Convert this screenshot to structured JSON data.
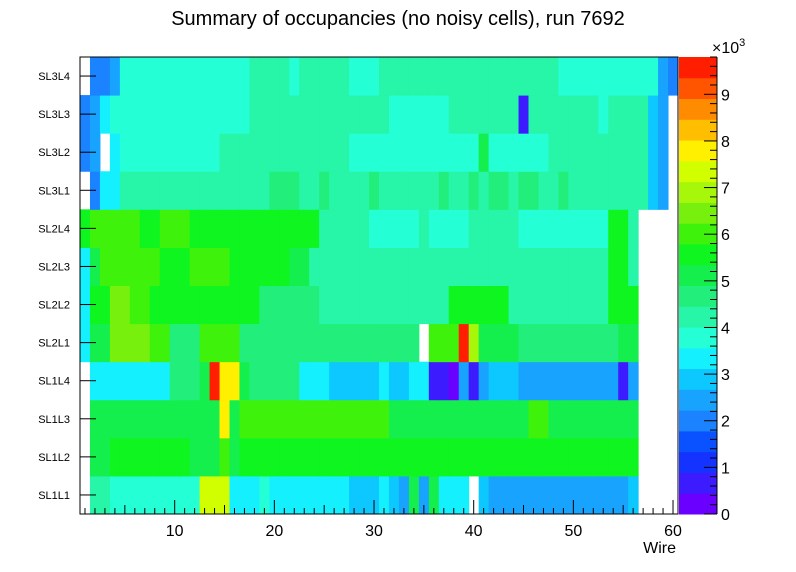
{
  "chart_data": {
    "type": "heatmap",
    "title": "Summary of occupancies (no noisy cells), run 7692",
    "xlabel": "Wire",
    "ylabel": "",
    "xlim": [
      0.5,
      60.5
    ],
    "x_ticks": [
      "10",
      "20",
      "30",
      "40",
      "50",
      "60"
    ],
    "y_categories": [
      "SL1L1",
      "SL1L2",
      "SL1L3",
      "SL1L4",
      "SL2L1",
      "SL2L2",
      "SL2L3",
      "SL2L4",
      "SL3L1",
      "SL3L2",
      "SL3L3",
      "SL3L4"
    ],
    "z_multiplier_label": "×10",
    "z_multiplier_exp": "3",
    "z_ticks": [
      "0",
      "1",
      "2",
      "3",
      "4",
      "5",
      "6",
      "7",
      "8",
      "9"
    ],
    "zlim": [
      0,
      9.8
    ],
    "z_units": "thousands",
    "values": [
      [
        0,
        4.3,
        4.3,
        3.8,
        3.8,
        3.8,
        3.8,
        3.8,
        3.8,
        3.8,
        3.8,
        3.8,
        7.2,
        7.2,
        7.2,
        3.5,
        3.5,
        3.5,
        3.8,
        3.5,
        3.5,
        3.5,
        3.5,
        3.5,
        3.5,
        3.5,
        3.5,
        3.1,
        3.1,
        3.1,
        3.5,
        3.1,
        2.5,
        5.0,
        2.6,
        5.0,
        3.5,
        3.5,
        3.5,
        0,
        3.1,
        2.6,
        2.6,
        2.6,
        2.6,
        2.6,
        2.6,
        2.6,
        2.6,
        2.6,
        2.6,
        2.6,
        2.6,
        2.6,
        2.6,
        3.0,
        0,
        0,
        0,
        0
      ],
      [
        0,
        5.0,
        5.0,
        5.4,
        5.4,
        5.4,
        5.4,
        5.4,
        5.4,
        5.4,
        5.4,
        5.0,
        5.0,
        5.0,
        6.2,
        5.0,
        5.4,
        5.4,
        5.4,
        5.4,
        5.4,
        5.4,
        5.4,
        5.4,
        5.4,
        5.4,
        5.4,
        5.4,
        5.4,
        5.4,
        5.4,
        5.4,
        5.4,
        5.4,
        5.4,
        5.4,
        5.4,
        5.4,
        5.4,
        5.4,
        5.4,
        5.4,
        5.4,
        5.4,
        5.4,
        5.4,
        5.4,
        5.4,
        5.4,
        5.4,
        5.4,
        5.4,
        5.4,
        5.4,
        5.4,
        5.4,
        0,
        0,
        0,
        0
      ],
      [
        0,
        4.9,
        4.9,
        4.9,
        4.9,
        4.9,
        5.3,
        4.9,
        5.3,
        5.3,
        5.3,
        5.3,
        5.3,
        5.3,
        7.8,
        5.3,
        5.9,
        5.9,
        5.9,
        5.9,
        5.9,
        5.9,
        5.9,
        5.9,
        5.9,
        5.9,
        5.9,
        5.9,
        5.9,
        5.9,
        5.9,
        5.3,
        5.3,
        5.3,
        5.3,
        5.3,
        5.3,
        5.3,
        5.3,
        5.3,
        5.3,
        5.3,
        5.3,
        5.3,
        5.3,
        5.9,
        5.9,
        5.3,
        5.3,
        5.3,
        5.3,
        5.3,
        5.3,
        5.3,
        5.3,
        5.3,
        0,
        0,
        0,
        0
      ],
      [
        0,
        3.5,
        3.5,
        3.5,
        3.5,
        3.5,
        3.5,
        3.5,
        3.5,
        4.5,
        4.5,
        4.5,
        4.9,
        9.4,
        7.8,
        7.8,
        4.9,
        4.5,
        4.5,
        4.5,
        4.5,
        4.5,
        3.5,
        3.5,
        3.5,
        3.1,
        3.1,
        3.1,
        3.1,
        3.1,
        3.5,
        3.1,
        3.1,
        3.5,
        3.5,
        0.8,
        0.8,
        0.3,
        2.6,
        0.8,
        2.6,
        3.1,
        3.1,
        3.1,
        2.6,
        2.6,
        2.6,
        2.6,
        2.6,
        2.6,
        2.6,
        2.6,
        2.6,
        2.6,
        0.5,
        2.6,
        0,
        0,
        0,
        0
      ],
      [
        3.5,
        5.0,
        5.0,
        6.4,
        6.4,
        6.4,
        6.4,
        5.8,
        5.8,
        4.8,
        4.8,
        4.8,
        5.8,
        5.8,
        5.8,
        5.8,
        4.8,
        4.8,
        4.8,
        4.8,
        4.8,
        4.8,
        4.8,
        4.8,
        4.8,
        4.8,
        4.8,
        4.8,
        4.8,
        4.8,
        4.8,
        4.8,
        4.8,
        4.8,
        0,
        5.8,
        5.8,
        5.8,
        9.6,
        7.0,
        5.2,
        5.2,
        5.2,
        5.2,
        4.8,
        4.8,
        4.8,
        4.8,
        4.8,
        4.8,
        4.8,
        4.8,
        4.8,
        4.8,
        5.2,
        5.2,
        0,
        0,
        0,
        0
      ],
      [
        3.5,
        5.4,
        5.4,
        6.4,
        6.4,
        5.9,
        5.9,
        5.4,
        5.4,
        5.4,
        5.4,
        5.4,
        5.4,
        5.4,
        5.4,
        5.4,
        5.4,
        5.4,
        4.8,
        4.8,
        4.8,
        4.8,
        4.8,
        4.8,
        4.4,
        4.4,
        4.4,
        4.4,
        4.4,
        4.4,
        4.4,
        4.4,
        4.4,
        4.4,
        4.4,
        4.4,
        4.4,
        5.4,
        5.4,
        5.4,
        5.4,
        5.4,
        5.4,
        4.4,
        4.4,
        4.4,
        4.4,
        4.4,
        4.4,
        4.4,
        4.4,
        4.4,
        4.4,
        5.4,
        5.4,
        5.4,
        0,
        0,
        0,
        0
      ],
      [
        3.5,
        5.0,
        5.8,
        5.8,
        5.8,
        5.8,
        5.8,
        5.8,
        5.4,
        5.4,
        5.4,
        5.8,
        5.8,
        5.8,
        5.8,
        5.4,
        5.4,
        5.4,
        5.4,
        5.4,
        5.4,
        5.1,
        5.1,
        4.4,
        4.4,
        4.4,
        4.4,
        4.4,
        4.4,
        4.4,
        4.4,
        4.4,
        4.4,
        4.4,
        4.4,
        4.4,
        4.4,
        4.4,
        4.4,
        4.4,
        4.4,
        4.4,
        4.4,
        4.4,
        4.4,
        4.4,
        4.4,
        4.4,
        4.4,
        4.4,
        4.4,
        4.4,
        4.4,
        5.4,
        5.4,
        4.4,
        0,
        0,
        0,
        0
      ],
      [
        5.5,
        5.9,
        5.9,
        5.9,
        5.9,
        5.9,
        5.4,
        5.4,
        5.9,
        5.9,
        5.9,
        5.4,
        5.4,
        5.4,
        5.4,
        5.4,
        5.4,
        5.4,
        5.4,
        5.4,
        5.4,
        5.4,
        5.4,
        5.4,
        4.4,
        4.4,
        4.4,
        4.4,
        4.4,
        3.7,
        3.7,
        3.7,
        3.7,
        3.7,
        4.4,
        3.7,
        3.7,
        3.7,
        3.7,
        4.4,
        4.4,
        4.4,
        4.4,
        4.4,
        3.7,
        3.7,
        3.7,
        3.7,
        3.7,
        3.7,
        3.7,
        3.7,
        3.7,
        5.4,
        5.4,
        4.4,
        0,
        0,
        0,
        0
      ],
      [
        0,
        2.0,
        3.5,
        3.5,
        4.2,
        4.2,
        4.2,
        4.2,
        4.2,
        4.2,
        4.2,
        4.2,
        4.2,
        4.2,
        4.2,
        4.2,
        4.2,
        4.2,
        4.2,
        4.6,
        4.6,
        4.6,
        4.2,
        4.2,
        4.6,
        4.2,
        4.2,
        4.2,
        4.2,
        4.6,
        4.2,
        4.2,
        4.2,
        4.2,
        4.2,
        4.2,
        4.6,
        4.2,
        4.2,
        4.6,
        4.2,
        4.6,
        4.6,
        4.2,
        4.6,
        4.6,
        4.2,
        4.2,
        4.6,
        4.2,
        4.2,
        4.2,
        4.2,
        4.2,
        4.2,
        4.2,
        4.2,
        3.0,
        2.5,
        0
      ],
      [
        2.0,
        2.5,
        0,
        3.5,
        3.8,
        3.8,
        3.8,
        3.8,
        3.8,
        3.8,
        3.8,
        3.8,
        3.8,
        3.8,
        4.2,
        4.2,
        4.2,
        4.2,
        4.2,
        4.2,
        4.2,
        4.2,
        4.2,
        4.2,
        4.2,
        4.2,
        4.2,
        3.8,
        3.8,
        3.8,
        3.8,
        3.8,
        3.8,
        3.8,
        3.8,
        3.8,
        3.8,
        3.8,
        3.8,
        3.8,
        5.2,
        3.8,
        3.8,
        3.8,
        3.8,
        3.8,
        3.8,
        4.2,
        4.2,
        4.2,
        4.2,
        4.2,
        4.2,
        4.2,
        4.2,
        4.2,
        4.2,
        3.0,
        2.5,
        0
      ],
      [
        1.8,
        2.6,
        3.5,
        3.8,
        3.8,
        3.8,
        3.8,
        3.8,
        3.8,
        3.8,
        3.8,
        3.8,
        3.8,
        3.8,
        3.8,
        3.8,
        3.8,
        4.2,
        4.2,
        4.2,
        4.2,
        4.2,
        4.2,
        4.2,
        4.2,
        4.2,
        4.2,
        4.2,
        4.2,
        4.2,
        4.2,
        3.8,
        3.8,
        3.8,
        3.8,
        3.8,
        3.8,
        4.2,
        4.2,
        4.2,
        4.2,
        4.2,
        4.2,
        4.2,
        0.6,
        4.2,
        4.2,
        4.2,
        4.2,
        4.2,
        4.2,
        4.2,
        3.8,
        4.2,
        4.2,
        4.2,
        4.2,
        3.0,
        2.6,
        0
      ],
      [
        0,
        2.1,
        2.1,
        2.5,
        3.8,
        3.8,
        3.8,
        3.8,
        3.8,
        3.8,
        3.8,
        3.8,
        3.8,
        3.8,
        3.8,
        3.8,
        3.8,
        4.3,
        4.3,
        4.3,
        4.3,
        3.8,
        4.3,
        4.3,
        4.3,
        4.3,
        4.3,
        3.8,
        3.8,
        3.8,
        4.3,
        4.3,
        4.3,
        4.3,
        4.3,
        4.3,
        4.3,
        4.3,
        4.3,
        4.3,
        4.3,
        4.3,
        4.3,
        4.3,
        4.3,
        4.3,
        4.3,
        4.3,
        3.8,
        3.8,
        3.8,
        3.8,
        3.8,
        3.8,
        3.8,
        3.8,
        3.8,
        3.8,
        2.5,
        2.1
      ]
    ]
  }
}
